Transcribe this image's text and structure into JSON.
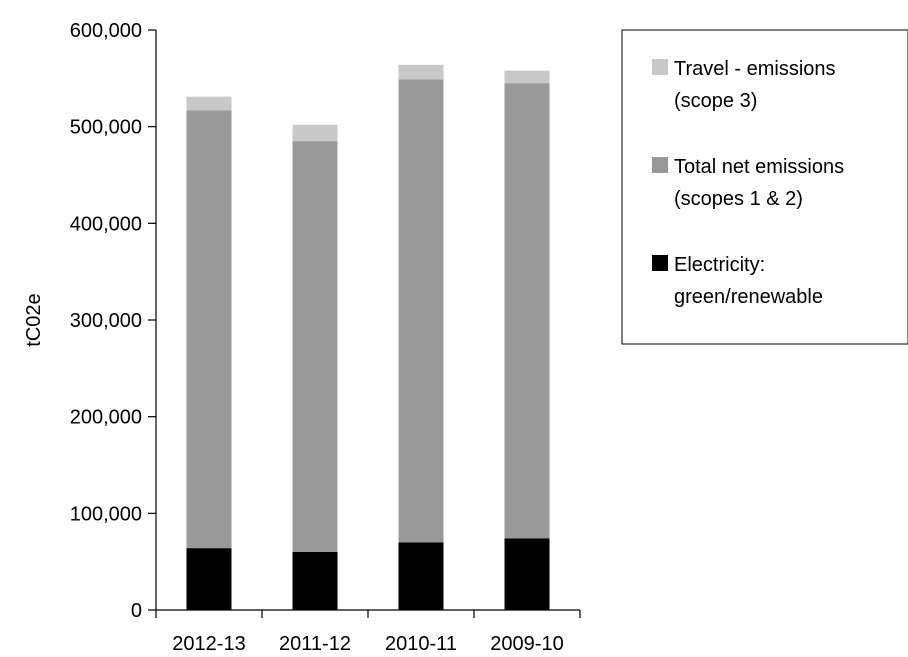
{
  "chart_data": {
    "type": "bar",
    "stacked": true,
    "title": "",
    "xlabel": "",
    "ylabel": "tC02e",
    "ylim": [
      0,
      600000
    ],
    "yticks": [
      "0",
      "100,000",
      "200,000",
      "300,000",
      "400,000",
      "500,000",
      "600,000"
    ],
    "categories": [
      "2012-13",
      "2011-12",
      "2010-11",
      "2009-10"
    ],
    "series": [
      {
        "name": "Electricity: green/renewable",
        "name_lines": [
          "Electricity:",
          "green/renewable"
        ],
        "color": "#000000",
        "values": [
          64000,
          60000,
          70000,
          74000
        ]
      },
      {
        "name": "Total net emissions (scopes 1 & 2)",
        "name_lines": [
          "Total net emissions",
          "(scopes 1 & 2)"
        ],
        "color": "#999999",
        "values": [
          453000,
          425000,
          479000,
          471000
        ]
      },
      {
        "name": "Travel - emissions (scope 3)",
        "name_lines": [
          "Travel - emissions",
          "(scope 3)"
        ],
        "color": "#c8c8c8",
        "values": [
          14000,
          17000,
          15000,
          13000
        ]
      }
    ],
    "legend_order": [
      2,
      1,
      0
    ],
    "legend_position": "right",
    "grid": false
  }
}
